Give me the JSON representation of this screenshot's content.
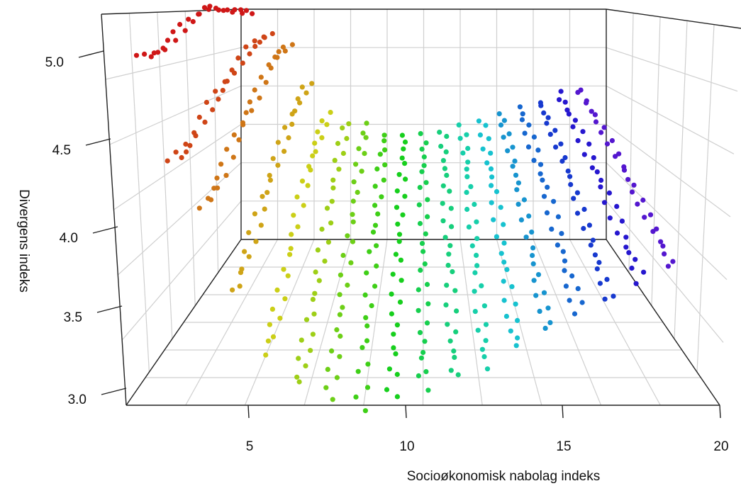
{
  "chart_data": {
    "type": "scatter",
    "title": "",
    "xlabel": "Socioøkonomisk nabolag indeks",
    "ylabel": "Divergens indeks",
    "x_ticks": [
      "5",
      "10",
      "15",
      "20"
    ],
    "z_ticks": [
      "3.0",
      "3.5",
      "4.0",
      "4.5",
      "5.0"
    ],
    "xlim": [
      1,
      20
    ],
    "zlim": [
      3.0,
      5.2
    ],
    "grid": true,
    "legend": "none",
    "colormap": "rainbow (red to violet along x)",
    "series": [
      {
        "x": 1.5,
        "z": [
          5.17,
          5.2,
          5.23,
          5.12,
          4.98,
          4.96
        ]
      },
      {
        "x": 2.5,
        "z": [
          4.96,
          4.9,
          4.72,
          4.6,
          4.42,
          4.38
        ]
      },
      {
        "x": 3.5,
        "z": [
          4.86,
          4.78,
          4.55,
          4.4,
          4.2,
          4.12
        ]
      },
      {
        "x": 4.5,
        "z": [
          4.5,
          4.34,
          4.15,
          3.96,
          3.78,
          3.64
        ]
      },
      {
        "x": 5.5,
        "z": [
          4.2,
          4.05,
          3.88,
          3.64,
          3.42,
          3.3
        ]
      },
      {
        "x": 6.5,
        "z": [
          4.12,
          3.9,
          3.62,
          3.4,
          3.22,
          3.12
        ]
      },
      {
        "x": 7.5,
        "z": [
          4.1,
          3.88,
          3.6,
          3.38,
          3.18,
          3.04
        ]
      },
      {
        "x": 8.5,
        "z": [
          4.0,
          3.82,
          3.6,
          3.38,
          3.18,
          2.97
        ]
      },
      {
        "x": 9.5,
        "z": [
          4.0,
          3.8,
          3.6,
          3.4,
          3.2,
          3.04
        ]
      },
      {
        "x": 10.5,
        "z": [
          4.0,
          3.8,
          3.6,
          3.4,
          3.22,
          3.1
        ]
      },
      {
        "x": 11.5,
        "z": [
          4.04,
          3.84,
          3.64,
          3.46,
          3.28,
          3.16
        ]
      },
      {
        "x": 12.5,
        "z": [
          4.08,
          3.9,
          3.7,
          3.52,
          3.34,
          3.22
        ]
      },
      {
        "x": 13.5,
        "z": [
          4.14,
          3.96,
          3.78,
          3.6,
          3.44,
          3.34
        ]
      },
      {
        "x": 14.5,
        "z": [
          4.2,
          4.04,
          3.86,
          3.7,
          3.54,
          3.44
        ]
      },
      {
        "x": 15.5,
        "z": [
          4.26,
          4.1,
          3.94,
          3.78,
          3.62,
          3.54
        ]
      },
      {
        "x": 16.5,
        "z": [
          4.32,
          4.18,
          4.02,
          3.86,
          3.72,
          3.6
        ]
      },
      {
        "x": 17.5,
        "z": [
          4.4,
          4.26,
          4.1,
          3.96,
          3.82,
          3.72
        ]
      },
      {
        "x": 18.5,
        "z": [
          4.44,
          4.3,
          4.16,
          4.02,
          3.9,
          3.8
        ]
      }
    ]
  }
}
